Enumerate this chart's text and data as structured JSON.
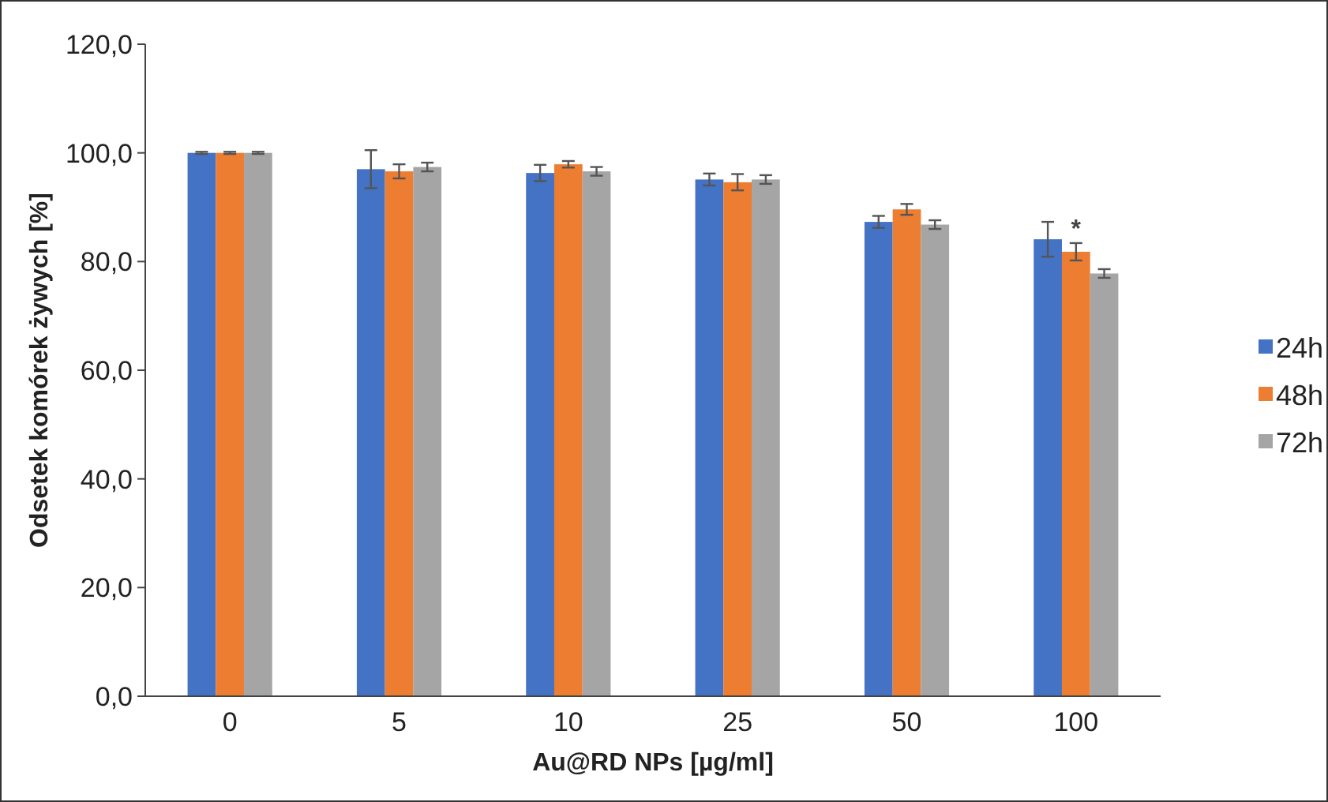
{
  "chart_data": {
    "type": "bar",
    "xlabel": "Au@RD NPs [µg/ml]",
    "ylabel": "Odsetek komórek żywych [%]",
    "categories": [
      "0",
      "5",
      "10",
      "25",
      "50",
      "100"
    ],
    "series": [
      {
        "name": "24h",
        "color": "#4472c4",
        "values": [
          100,
          97.0,
          96.3,
          95.1,
          87.3,
          84.1
        ],
        "errors": [
          0.2,
          3.5,
          1.5,
          1.1,
          1.1,
          3.2
        ]
      },
      {
        "name": "48h",
        "color": "#ed7d31",
        "values": [
          100,
          96.6,
          97.9,
          94.6,
          89.6,
          81.8
        ],
        "errors": [
          0.2,
          1.3,
          0.6,
          1.5,
          1.0,
          1.6
        ]
      },
      {
        "name": "72h",
        "color": "#a5a5a5",
        "values": [
          100,
          97.4,
          96.6,
          95.1,
          86.8,
          77.8
        ],
        "errors": [
          0.2,
          0.8,
          0.8,
          0.8,
          0.8,
          0.8
        ]
      }
    ],
    "ylim": [
      0,
      120
    ],
    "yticks": [
      {
        "value": 0,
        "label": "0,0"
      },
      {
        "value": 20,
        "label": "20,0"
      },
      {
        "value": 40,
        "label": "40,0"
      },
      {
        "value": 60,
        "label": "60,0"
      },
      {
        "value": 80,
        "label": "80,0"
      },
      {
        "value": 100,
        "label": "100,0"
      },
      {
        "value": 120,
        "label": "120,0"
      }
    ],
    "annotations": [
      {
        "text": "*",
        "x": "100",
        "y": 84.5
      }
    ],
    "legend": "right",
    "grid": false
  }
}
